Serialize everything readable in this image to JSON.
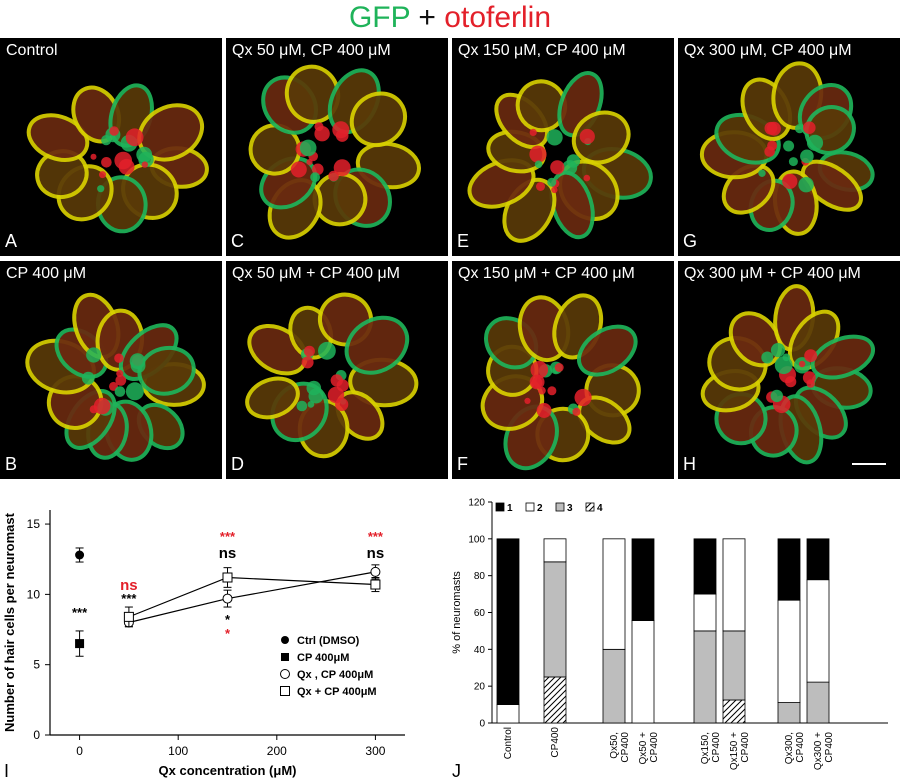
{
  "header": {
    "gfp": "GFP",
    "plus": " + ",
    "otoferlin": "otoferlin"
  },
  "panels": [
    {
      "letter": "A",
      "label": "Control"
    },
    {
      "letter": "C",
      "label": "Qx 50 μM, CP 400 μM"
    },
    {
      "letter": "E",
      "label": "Qx 150 μM, CP 400 μM"
    },
    {
      "letter": "G",
      "label": "Qx 300 μM, CP 400 μM"
    },
    {
      "letter": "B",
      "label": "CP 400 μM"
    },
    {
      "letter": "D",
      "label": "Qx 50 μM + CP 400 μM"
    },
    {
      "letter": "F",
      "label": "Qx 150 μM + CP 400 μM"
    },
    {
      "letter": "H",
      "label": "Qx 300 μM + CP 400 μM"
    }
  ],
  "colors": {
    "gfp": "#1fb35a",
    "otoferlin": "#e3202a",
    "yellow": "#d8d000",
    "sig_red": "#e3202a"
  },
  "chart_data": [
    {
      "type": "line",
      "panel_letter": "I",
      "xlabel": "Qx concentration (μM)",
      "ylabel": "Number of hair cells per neuromast",
      "xlim": [
        -30,
        330
      ],
      "ylim": [
        0,
        16
      ],
      "xticks": [
        0,
        100,
        200,
        300
      ],
      "yticks": [
        0,
        5,
        10,
        15
      ],
      "series": [
        {
          "name": "Ctrl (DMSO)",
          "marker": "filled-circle",
          "x": [
            0
          ],
          "y": [
            12.8
          ],
          "err": [
            0.5
          ]
        },
        {
          "name": "CP 400μM",
          "marker": "filled-square",
          "x": [
            0
          ],
          "y": [
            6.5
          ],
          "err": [
            0.9
          ]
        },
        {
          "name": "Qx , CP 400μM",
          "marker": "open-circle",
          "x": [
            50,
            150,
            300
          ],
          "y": [
            8.0,
            9.7,
            11.6
          ],
          "err": [
            0.3,
            0.6,
            0.5
          ]
        },
        {
          "name": "Qx + CP 400μM",
          "marker": "open-square",
          "x": [
            50,
            150,
            300
          ],
          "y": [
            8.4,
            11.2,
            10.7
          ],
          "err": [
            0.7,
            0.7,
            0.5
          ]
        }
      ],
      "annotations": [
        {
          "text": "***",
          "x": 0,
          "y": 8.4,
          "color": "#000"
        },
        {
          "text": "ns",
          "x": 50,
          "y": 10.3,
          "color": "#e3202a"
        },
        {
          "text": "***",
          "x": 50,
          "y": 9.4,
          "color": "#000"
        },
        {
          "text": "***",
          "x": 150,
          "y": 13.8,
          "color": "#e3202a"
        },
        {
          "text": "ns",
          "x": 150,
          "y": 12.6,
          "color": "#000"
        },
        {
          "text": "*",
          "x": 150,
          "y": 7.9,
          "color": "#000"
        },
        {
          "text": "*",
          "x": 150,
          "y": 6.9,
          "color": "#e3202a"
        },
        {
          "text": "***",
          "x": 300,
          "y": 13.8,
          "color": "#e3202a"
        },
        {
          "text": "ns",
          "x": 300,
          "y": 12.6,
          "color": "#000"
        }
      ],
      "legend_position": "bottom-right"
    },
    {
      "type": "bar",
      "subtype": "stacked",
      "panel_letter": "J",
      "ylabel": "% of neuromasts",
      "ylim": [
        0,
        120
      ],
      "yticks": [
        0,
        20,
        40,
        60,
        80,
        100,
        120
      ],
      "legend": [
        "1",
        "2",
        "3",
        "4"
      ],
      "categories": [
        "Control",
        "CP400",
        "Qx50, CP400",
        "Qx50 + CP400",
        "Qx150, CP400",
        "Qx150 + CP400",
        "Qx300, CP400",
        "Qx300 + CP400"
      ],
      "series": [
        {
          "name": "4",
          "values": [
            0,
            25,
            0,
            0,
            0,
            12.5,
            0,
            0
          ]
        },
        {
          "name": "3",
          "values": [
            0,
            62.5,
            40,
            0,
            50,
            37.5,
            11.1,
            22.2
          ]
        },
        {
          "name": "2",
          "values": [
            10,
            12.5,
            60,
            55.6,
            20,
            50,
            55.6,
            55.6
          ]
        },
        {
          "name": "1",
          "values": [
            90,
            0,
            0,
            44.4,
            30,
            0,
            33.3,
            22.2
          ]
        }
      ],
      "legend_position": "top-left"
    }
  ]
}
